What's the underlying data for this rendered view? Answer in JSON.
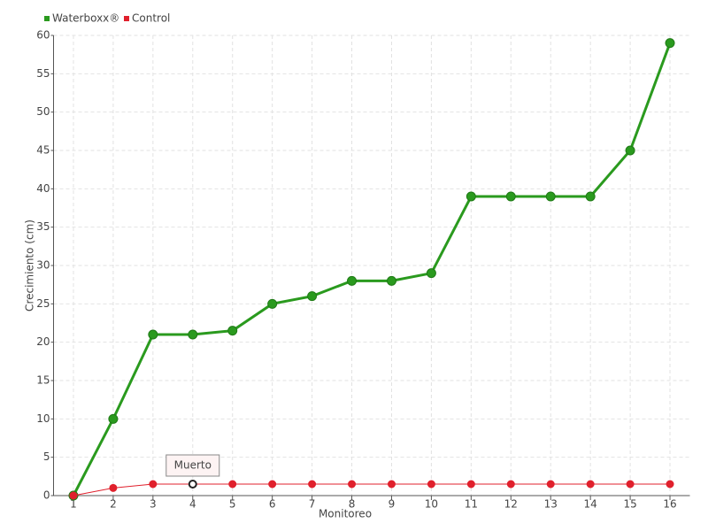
{
  "chart_data": {
    "type": "line",
    "x_label": "Monitoreo",
    "y_label": "Crecimiento (cm)",
    "categories": [
      "1",
      "2",
      "3",
      "4",
      "5",
      "6",
      "7",
      "8",
      "9",
      "10",
      "11",
      "12",
      "13",
      "14",
      "15",
      "16"
    ],
    "series": [
      {
        "name": "Waterboxx®",
        "color": "#2a9a1e",
        "values": [
          0,
          10,
          21,
          21,
          21.5,
          25,
          26,
          28,
          28,
          29,
          39,
          39,
          39,
          39,
          45,
          59
        ]
      },
      {
        "name": "Control",
        "color": "#e0202c",
        "values": [
          0,
          1,
          1.5,
          1.5,
          1.5,
          1.5,
          1.5,
          1.5,
          1.5,
          1.5,
          1.5,
          1.5,
          1.5,
          1.5,
          1.5,
          1.5
        ]
      }
    ],
    "annotation": "Muerto",
    "ylim": [
      0,
      60
    ],
    "yticks": [
      0,
      5,
      10,
      15,
      20,
      25,
      30,
      35,
      40,
      45,
      50,
      55,
      60
    ],
    "grid": true
  }
}
